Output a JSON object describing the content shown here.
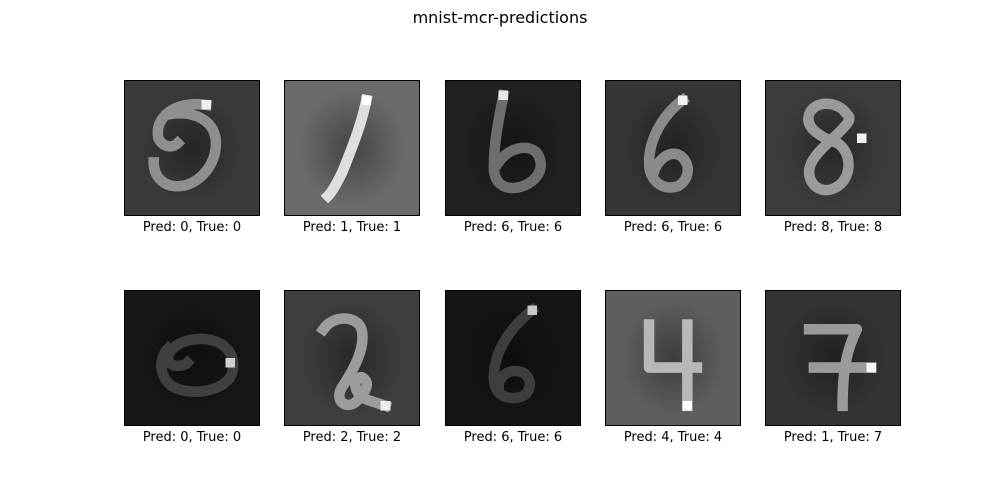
{
  "chart_data": {
    "type": "image-grid",
    "title": "mnist-mcr-predictions",
    "rows": 2,
    "cols": 5,
    "panels": [
      {
        "pred": 0,
        "true": 0,
        "label": "Pred: 0, True: 0",
        "background": "#3a3a3a",
        "stroke": "#8f8f8f",
        "highlight": "#eeeeee",
        "glyph": "0"
      },
      {
        "pred": 1,
        "true": 1,
        "label": "Pred: 1, True: 1",
        "background": "#6a6a6a",
        "stroke": "#dedede",
        "highlight": "#ffffff",
        "glyph": "1"
      },
      {
        "pred": 6,
        "true": 6,
        "label": "Pred: 6, True: 6",
        "background": "#202020",
        "stroke": "#6e6e6e",
        "highlight": "#e8e8e8",
        "glyph": "6"
      },
      {
        "pred": 6,
        "true": 6,
        "label": "Pred: 6, True: 6",
        "background": "#353535",
        "stroke": "#8a8a8a",
        "highlight": "#f0f0f0",
        "glyph": "6b"
      },
      {
        "pred": 8,
        "true": 8,
        "label": "Pred: 8, True: 8",
        "background": "#3c3c3c",
        "stroke": "#9a9a9a",
        "highlight": "#f4f4f4",
        "glyph": "8"
      },
      {
        "pred": 0,
        "true": 0,
        "label": "Pred: 0, True: 0",
        "background": "#161616",
        "stroke": "#404040",
        "highlight": "#d0d0d0",
        "glyph": "0b"
      },
      {
        "pred": 2,
        "true": 2,
        "label": "Pred: 2, True: 2",
        "background": "#3e3e3e",
        "stroke": "#9c9c9c",
        "highlight": "#ececec",
        "glyph": "2"
      },
      {
        "pred": 6,
        "true": 6,
        "label": "Pred: 6, True: 6",
        "background": "#151515",
        "stroke": "#3e3e3e",
        "highlight": "#c8c8c8",
        "glyph": "6c"
      },
      {
        "pred": 4,
        "true": 4,
        "label": "Pred: 4, True: 4",
        "background": "#5e5e5e",
        "stroke": "#b8b8b8",
        "highlight": "#ffffff",
        "glyph": "4"
      },
      {
        "pred": 1,
        "true": 7,
        "label": "Pred: 1, True: 7",
        "background": "#333333",
        "stroke": "#9a9a9a",
        "highlight": "#f6f6f6",
        "glyph": "7"
      }
    ]
  }
}
